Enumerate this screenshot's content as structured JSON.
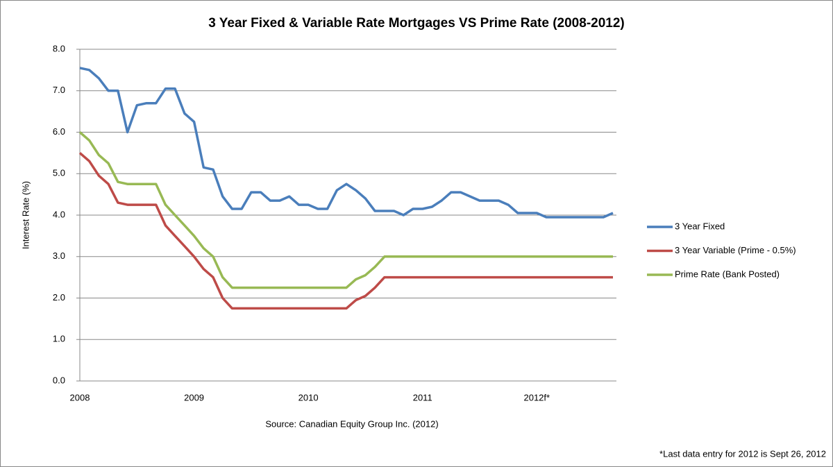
{
  "chart_data": {
    "type": "line",
    "title": "3 Year Fixed & Variable Rate Mortgages VS Prime Rate (2008-2012)",
    "y_label": "Interest Rate (%)",
    "annotations": [
      "Source: Canadian Equity Group Inc. (2012)",
      "*Last data entry for 2012 is Sept 26, 2012"
    ],
    "categories": [
      "2008",
      null,
      null,
      null,
      null,
      null,
      null,
      null,
      null,
      null,
      null,
      null,
      "2009",
      null,
      null,
      null,
      null,
      null,
      null,
      null,
      null,
      null,
      null,
      null,
      "2010",
      null,
      null,
      null,
      null,
      null,
      null,
      null,
      null,
      null,
      null,
      null,
      "2011",
      null,
      null,
      null,
      null,
      null,
      null,
      null,
      null,
      null,
      null,
      null,
      "2012f*",
      null,
      null,
      null,
      null,
      null,
      null,
      null,
      null
    ],
    "series": [
      {
        "name": "3 Year Fixed",
        "color": "#4a7ebb",
        "values": [
          7.55,
          7.5,
          7.3,
          7.0,
          7.0,
          6.0,
          6.65,
          6.7,
          6.7,
          7.05,
          7.05,
          6.45,
          6.25,
          5.15,
          5.1,
          4.45,
          4.15,
          4.15,
          4.55,
          4.55,
          4.35,
          4.35,
          4.45,
          4.25,
          4.25,
          4.15,
          4.15,
          4.6,
          4.75,
          4.6,
          4.4,
          4.1,
          4.1,
          4.1,
          4.0,
          4.15,
          4.15,
          4.2,
          4.35,
          4.55,
          4.55,
          4.45,
          4.35,
          4.35,
          4.35,
          4.25,
          4.05,
          4.05,
          4.05,
          3.95,
          3.95,
          3.95,
          3.95,
          3.95,
          3.95,
          3.95,
          4.05
        ]
      },
      {
        "name": "3 Year Variable (Prime - 0.5%)",
        "color": "#be4b48",
        "values": [
          5.5,
          5.3,
          4.95,
          4.75,
          4.3,
          4.25,
          4.25,
          4.25,
          4.25,
          3.75,
          3.5,
          3.25,
          3.0,
          2.7,
          2.5,
          2.0,
          1.75,
          1.75,
          1.75,
          1.75,
          1.75,
          1.75,
          1.75,
          1.75,
          1.75,
          1.75,
          1.75,
          1.75,
          1.75,
          1.95,
          2.05,
          2.25,
          2.5,
          2.5,
          2.5,
          2.5,
          2.5,
          2.5,
          2.5,
          2.5,
          2.5,
          2.5,
          2.5,
          2.5,
          2.5,
          2.5,
          2.5,
          2.5,
          2.5,
          2.5,
          2.5,
          2.5,
          2.5,
          2.5,
          2.5,
          2.5,
          2.5
        ]
      },
      {
        "name": "Prime Rate (Bank Posted)",
        "color": "#98b954",
        "values": [
          6.0,
          5.8,
          5.45,
          5.25,
          4.8,
          4.75,
          4.75,
          4.75,
          4.75,
          4.25,
          4.0,
          3.75,
          3.5,
          3.2,
          3.0,
          2.5,
          2.25,
          2.25,
          2.25,
          2.25,
          2.25,
          2.25,
          2.25,
          2.25,
          2.25,
          2.25,
          2.25,
          2.25,
          2.25,
          2.45,
          2.55,
          2.75,
          3.0,
          3.0,
          3.0,
          3.0,
          3.0,
          3.0,
          3.0,
          3.0,
          3.0,
          3.0,
          3.0,
          3.0,
          3.0,
          3.0,
          3.0,
          3.0,
          3.0,
          3.0,
          3.0,
          3.0,
          3.0,
          3.0,
          3.0,
          3.0,
          3.0
        ]
      }
    ],
    "ylim": [
      0,
      8
    ],
    "yticks": [
      {
        "value": 0,
        "label": "0.0"
      },
      {
        "value": 1,
        "label": "1.0"
      },
      {
        "value": 2,
        "label": "2.0"
      },
      {
        "value": 3,
        "label": "3.0"
      },
      {
        "value": 4,
        "label": "4.0"
      },
      {
        "value": 5,
        "label": "5.0"
      },
      {
        "value": 6,
        "label": "6.0"
      },
      {
        "value": 7,
        "label": "7.0"
      },
      {
        "value": 8,
        "label": "8.0"
      }
    ],
    "grid": true,
    "legend": "right"
  }
}
